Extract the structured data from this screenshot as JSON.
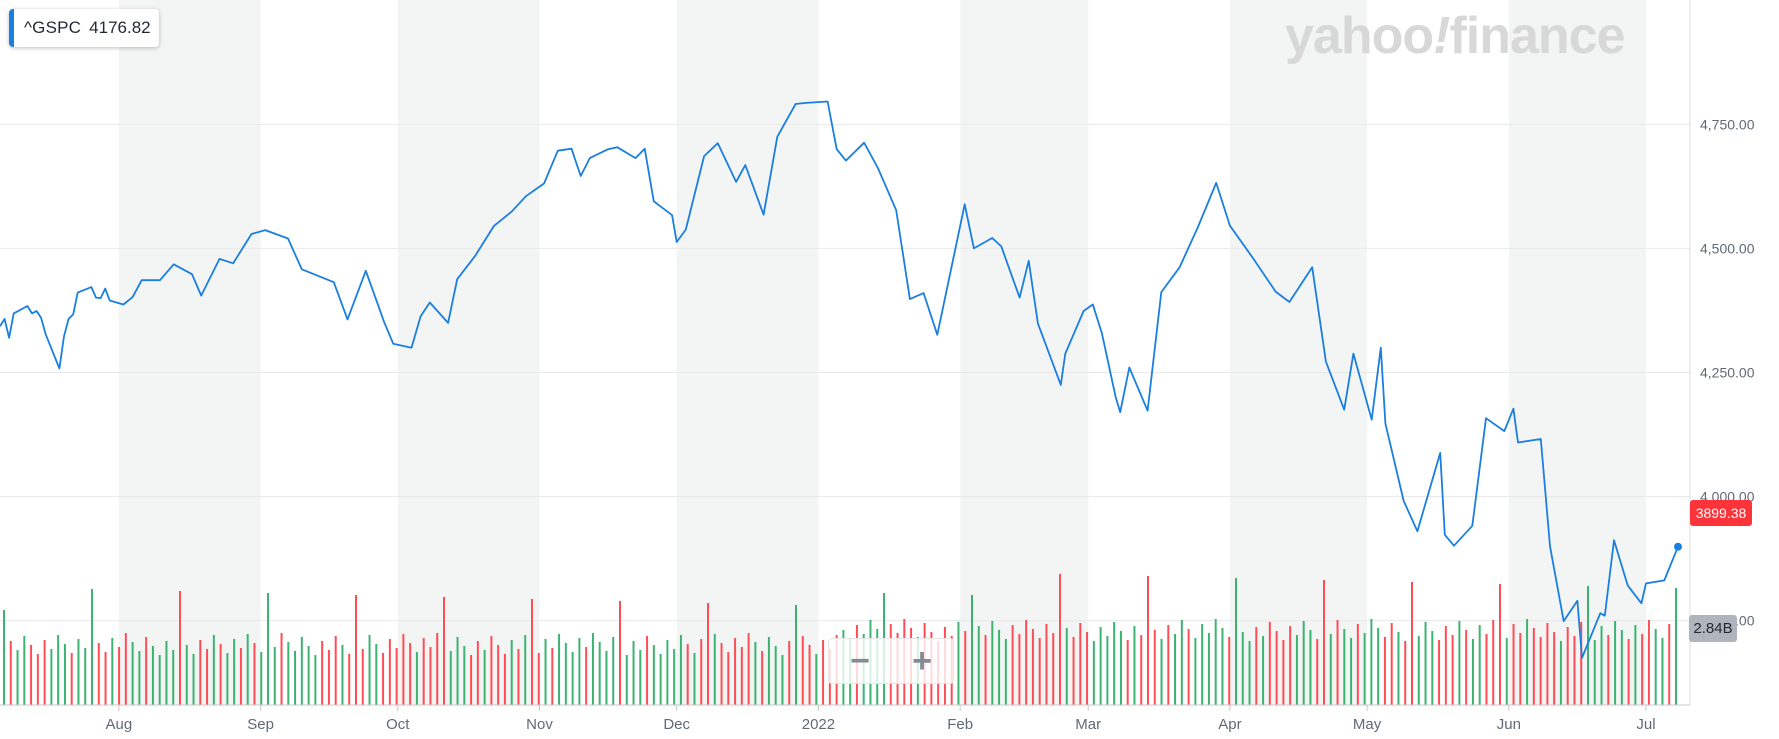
{
  "ticker": {
    "symbol": "^GSPC",
    "price": "4176.82"
  },
  "logo": {
    "part1": "yahoo",
    "slash": "!",
    "part2": "finance"
  },
  "zoom": {
    "minus": "−",
    "plus": "+"
  },
  "price_tag": "3899.38",
  "volume_tag": "2.84B",
  "colors": {
    "line": "#1a7fe0",
    "vol_up": "#3cb371",
    "vol_down": "#ff4d55",
    "band": "#f3f4f4",
    "grid": "#e8e8e8",
    "axis_text": "#606a74"
  },
  "chart_data": {
    "type": "line",
    "title": "",
    "xlabel": "",
    "ylabel": "",
    "ylim": [
      3580,
      4920
    ],
    "y_ticks": [
      "4,750.00",
      "4,500.00",
      "4,250.00",
      "4,000.00",
      "3,750.00"
    ],
    "y_tick_values": [
      4750,
      4500,
      4250,
      4000,
      3750
    ],
    "x_ticks": [
      "Aug",
      "Sep",
      "Oct",
      "Nov",
      "Dec",
      "2022",
      "Feb",
      "Mar",
      "Apr",
      "May",
      "Jun",
      "Jul"
    ],
    "x_tick_dates": [
      "2021-08-01",
      "2021-09-01",
      "2021-10-01",
      "2021-11-01",
      "2021-12-01",
      "2022-01-01",
      "2022-02-01",
      "2022-03-01",
      "2022-04-01",
      "2022-05-01",
      "2022-06-01",
      "2022-07-01"
    ],
    "x_range": [
      "2021-07-06",
      "2022-07-08"
    ],
    "grid": true,
    "series": [
      {
        "name": "",
        "x": [
          "2021-07-06",
          "2021-07-07",
          "2021-07-08",
          "2021-07-09",
          "2021-07-12",
          "2021-07-13",
          "2021-07-14",
          "2021-07-15",
          "2021-07-16",
          "2021-07-19",
          "2021-07-20",
          "2021-07-21",
          "2021-07-22",
          "2021-07-23",
          "2021-07-26",
          "2021-07-27",
          "2021-07-28",
          "2021-07-29",
          "2021-07-30",
          "2021-08-02",
          "2021-08-04",
          "2021-08-06",
          "2021-08-10",
          "2021-08-13",
          "2021-08-17",
          "2021-08-19",
          "2021-08-23",
          "2021-08-26",
          "2021-08-30",
          "2021-09-02",
          "2021-09-07",
          "2021-09-10",
          "2021-09-14",
          "2021-09-17",
          "2021-09-20",
          "2021-09-24",
          "2021-09-28",
          "2021-09-30",
          "2021-10-04",
          "2021-10-06",
          "2021-10-08",
          "2021-10-12",
          "2021-10-14",
          "2021-10-18",
          "2021-10-22",
          "2021-10-26",
          "2021-10-29",
          "2021-11-02",
          "2021-11-05",
          "2021-11-08",
          "2021-11-10",
          "2021-11-12",
          "2021-11-16",
          "2021-11-18",
          "2021-11-22",
          "2021-11-24",
          "2021-11-26",
          "2021-11-30",
          "2021-12-01",
          "2021-12-03",
          "2021-12-07",
          "2021-12-10",
          "2021-12-14",
          "2021-12-16",
          "2021-12-20",
          "2021-12-23",
          "2021-12-27",
          "2021-12-29",
          "2022-01-03",
          "2022-01-05",
          "2022-01-07",
          "2022-01-11",
          "2022-01-14",
          "2022-01-18",
          "2022-01-21",
          "2022-01-24",
          "2022-01-27",
          "2022-02-02",
          "2022-02-04",
          "2022-02-08",
          "2022-02-10",
          "2022-02-14",
          "2022-02-16",
          "2022-02-18",
          "2022-02-23",
          "2022-02-24",
          "2022-02-28",
          "2022-03-02",
          "2022-03-04",
          "2022-03-07",
          "2022-03-08",
          "2022-03-10",
          "2022-03-14",
          "2022-03-17",
          "2022-03-21",
          "2022-03-25",
          "2022-03-29",
          "2022-04-01",
          "2022-04-06",
          "2022-04-11",
          "2022-04-14",
          "2022-04-19",
          "2022-04-22",
          "2022-04-26",
          "2022-04-28",
          "2022-05-02",
          "2022-05-04",
          "2022-05-05",
          "2022-05-09",
          "2022-05-12",
          "2022-05-17",
          "2022-05-18",
          "2022-05-20",
          "2022-05-24",
          "2022-05-27",
          "2022-05-31",
          "2022-06-02",
          "2022-06-03",
          "2022-06-08",
          "2022-06-10",
          "2022-06-13",
          "2022-06-16",
          "2022-06-17",
          "2022-06-21",
          "2022-06-22",
          "2022-06-24",
          "2022-06-27",
          "2022-06-30",
          "2022-07-01",
          "2022-07-05",
          "2022-07-08"
        ],
        "values": [
          4343,
          4358,
          4320,
          4369,
          4384,
          4369,
          4374,
          4360,
          4327,
          4258,
          4323,
          4358,
          4367,
          4411,
          4422,
          4401,
          4400,
          4419,
          4395,
          4387,
          4402,
          4436,
          4436,
          4468,
          4448,
          4405,
          4479,
          4470,
          4529,
          4537,
          4520,
          4458,
          4443,
          4432,
          4357,
          4455,
          4352,
          4308,
          4300,
          4363,
          4391,
          4350,
          4438,
          4486,
          4545,
          4575,
          4605,
          4631,
          4697,
          4701,
          4646,
          4682,
          4700,
          4704,
          4682,
          4701,
          4595,
          4567,
          4513,
          4538,
          4686,
          4712,
          4634,
          4668,
          4568,
          4725,
          4791,
          4793,
          4796,
          4700,
          4677,
          4713,
          4662,
          4577,
          4398,
          4410,
          4326,
          4589,
          4500,
          4521,
          4504,
          4401,
          4475,
          4349,
          4225,
          4288,
          4374,
          4387,
          4329,
          4201,
          4170,
          4260,
          4173,
          4412,
          4462,
          4543,
          4632,
          4546,
          4481,
          4413,
          4392,
          4462,
          4272,
          4175,
          4288,
          4155,
          4300,
          4147,
          3991,
          3930,
          4088,
          3923,
          3901,
          3941,
          4158,
          4132,
          4177,
          4109,
          4116,
          3900,
          3749,
          3790,
          3675,
          3765,
          3760,
          3912,
          3821,
          3785,
          3825,
          3831,
          3899
        ],
        "color": "#1a7fe0"
      }
    ],
    "volume": {
      "count": 248,
      "max_label": "2.84B"
    }
  }
}
